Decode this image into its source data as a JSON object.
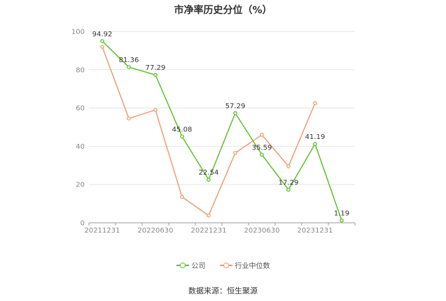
{
  "title": "市净率历史分位（%）",
  "source": "数据来源：恒生聚源",
  "colors": {
    "company": "#5cbf2a",
    "industry": "#f09a72",
    "grid": "#e6e6e6",
    "axis": "#999999"
  },
  "chart_data": {
    "type": "line",
    "title": "市净率历史分位（%）",
    "x_tick_labels": [
      "20211231",
      "20220630",
      "20221231",
      "20230630",
      "20231231"
    ],
    "x_points": [
      "20211231",
      "20220331",
      "20220630",
      "20220930",
      "20221231",
      "20230331",
      "20230630",
      "20230930",
      "20231231",
      "20240331"
    ],
    "ylim": [
      0,
      100
    ],
    "y_ticks": [
      0,
      20,
      40,
      60,
      80,
      100
    ],
    "grid": true,
    "legend_position": "bottom",
    "series": [
      {
        "name": "公司",
        "color": "#5cbf2a",
        "values": [
          94.92,
          81.36,
          77.29,
          45.08,
          22.54,
          57.29,
          35.59,
          17.29,
          41.19,
          1.19
        ],
        "labels": [
          "94.92",
          "81.36",
          "77.29",
          "45.08",
          "22.54",
          "57.29",
          "35.59",
          "17.29",
          "41.19",
          "1.19"
        ]
      },
      {
        "name": "行业中位数",
        "color": "#f09a72",
        "values": [
          92.0,
          54.5,
          59.0,
          13.5,
          3.8,
          36.5,
          46.0,
          29.5,
          62.5,
          null
        ]
      }
    ]
  }
}
